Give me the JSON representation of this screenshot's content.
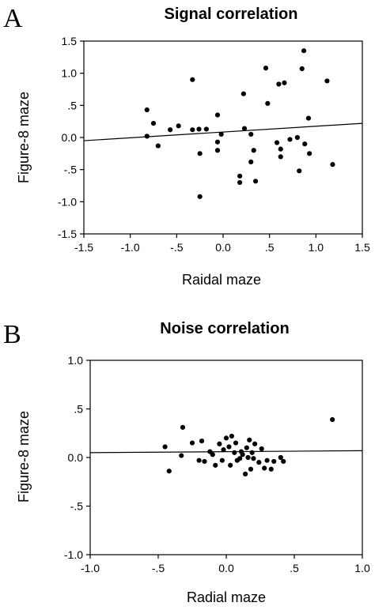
{
  "panels": [
    {
      "letter": "A"
    },
    {
      "letter": "B"
    }
  ],
  "chart_data": [
    {
      "type": "scatter",
      "title": "Signal correlation",
      "xlabel": "Raidal maze",
      "ylabel": "Figure-8 maze",
      "xlim": [
        -1.5,
        1.5
      ],
      "ylim": [
        -1.5,
        1.5
      ],
      "xticks": [
        -1.5,
        -1.0,
        -0.5,
        0.0,
        0.5,
        1.0,
        1.5
      ],
      "xtick_labels": [
        "-1.5",
        "-1.0",
        "-.5",
        "0.0",
        ".5",
        "1.0",
        "1.5"
      ],
      "yticks": [
        1.5,
        1.0,
        0.5,
        0.0,
        -0.5,
        -1.0,
        -1.5
      ],
      "ytick_labels": [
        "1.5",
        "1.0",
        ".5",
        "0.0",
        "-.5",
        "-1.0",
        "-1.5"
      ],
      "grid": false,
      "points": [
        {
          "x": -0.82,
          "y": 0.43
        },
        {
          "x": -0.82,
          "y": 0.02
        },
        {
          "x": -0.75,
          "y": 0.22
        },
        {
          "x": -0.7,
          "y": -0.13
        },
        {
          "x": -0.57,
          "y": 0.12
        },
        {
          "x": -0.48,
          "y": 0.18
        },
        {
          "x": -0.33,
          "y": 0.12
        },
        {
          "x": -0.33,
          "y": 0.9
        },
        {
          "x": -0.26,
          "y": 0.13
        },
        {
          "x": -0.25,
          "y": -0.25
        },
        {
          "x": -0.25,
          "y": -0.92
        },
        {
          "x": -0.18,
          "y": 0.13
        },
        {
          "x": -0.06,
          "y": 0.35
        },
        {
          "x": -0.06,
          "y": -0.07
        },
        {
          "x": -0.06,
          "y": -0.2
        },
        {
          "x": -0.02,
          "y": 0.05
        },
        {
          "x": 0.18,
          "y": -0.6
        },
        {
          "x": 0.18,
          "y": -0.7
        },
        {
          "x": 0.22,
          "y": 0.68
        },
        {
          "x": 0.23,
          "y": 0.14
        },
        {
          "x": 0.3,
          "y": 0.05
        },
        {
          "x": 0.3,
          "y": -0.38
        },
        {
          "x": 0.33,
          "y": -0.2
        },
        {
          "x": 0.35,
          "y": -0.68
        },
        {
          "x": 0.46,
          "y": 1.08
        },
        {
          "x": 0.48,
          "y": 0.53
        },
        {
          "x": 0.58,
          "y": -0.08
        },
        {
          "x": 0.6,
          "y": 0.83
        },
        {
          "x": 0.62,
          "y": -0.18
        },
        {
          "x": 0.62,
          "y": -0.3
        },
        {
          "x": 0.66,
          "y": 0.85
        },
        {
          "x": 0.72,
          "y": -0.03
        },
        {
          "x": 0.8,
          "y": 0.0
        },
        {
          "x": 0.82,
          "y": -0.52
        },
        {
          "x": 0.85,
          "y": 1.07
        },
        {
          "x": 0.87,
          "y": 1.35
        },
        {
          "x": 0.88,
          "y": -0.1
        },
        {
          "x": 0.92,
          "y": 0.3
        },
        {
          "x": 0.93,
          "y": -0.25
        },
        {
          "x": 1.12,
          "y": 0.88
        },
        {
          "x": 1.18,
          "y": -0.42
        }
      ],
      "fit_line": {
        "x": [
          -1.5,
          1.5
        ],
        "y": [
          -0.05,
          0.22
        ]
      }
    },
    {
      "type": "scatter",
      "title": "Noise correlation",
      "xlabel": "Radial maze",
      "ylabel": "Figure-8 maze",
      "xlim": [
        -1.0,
        1.0
      ],
      "ylim": [
        -1.0,
        1.0
      ],
      "xticks": [
        -1.0,
        -0.5,
        0.0,
        0.5,
        1.0
      ],
      "xtick_labels": [
        "-1.0",
        "-.5",
        "0.0",
        ".5",
        "1.0"
      ],
      "yticks": [
        1.0,
        0.5,
        0.0,
        -0.5,
        -1.0
      ],
      "ytick_labels": [
        "1.0",
        ".5",
        "0.0",
        "-.5",
        "-1.0"
      ],
      "grid": false,
      "points": [
        {
          "x": -0.45,
          "y": 0.11
        },
        {
          "x": -0.42,
          "y": -0.14
        },
        {
          "x": -0.33,
          "y": 0.02
        },
        {
          "x": -0.32,
          "y": 0.31
        },
        {
          "x": -0.25,
          "y": 0.15
        },
        {
          "x": -0.2,
          "y": -0.03
        },
        {
          "x": -0.18,
          "y": 0.17
        },
        {
          "x": -0.16,
          "y": -0.04
        },
        {
          "x": -0.12,
          "y": 0.06
        },
        {
          "x": -0.1,
          "y": 0.03
        },
        {
          "x": -0.08,
          "y": -0.08
        },
        {
          "x": -0.05,
          "y": 0.14
        },
        {
          "x": -0.03,
          "y": -0.03
        },
        {
          "x": -0.02,
          "y": 0.08
        },
        {
          "x": 0.0,
          "y": 0.2
        },
        {
          "x": 0.02,
          "y": 0.11
        },
        {
          "x": 0.03,
          "y": -0.08
        },
        {
          "x": 0.04,
          "y": 0.22
        },
        {
          "x": 0.06,
          "y": 0.05
        },
        {
          "x": 0.07,
          "y": 0.15
        },
        {
          "x": 0.08,
          "y": -0.03
        },
        {
          "x": 0.1,
          "y": -0.01
        },
        {
          "x": 0.11,
          "y": 0.06
        },
        {
          "x": 0.12,
          "y": 0.03
        },
        {
          "x": 0.14,
          "y": -0.17
        },
        {
          "x": 0.15,
          "y": 0.1
        },
        {
          "x": 0.16,
          "y": 0.0
        },
        {
          "x": 0.17,
          "y": 0.18
        },
        {
          "x": 0.18,
          "y": -0.12
        },
        {
          "x": 0.19,
          "y": 0.05
        },
        {
          "x": 0.2,
          "y": -0.01
        },
        {
          "x": 0.21,
          "y": 0.14
        },
        {
          "x": 0.24,
          "y": -0.05
        },
        {
          "x": 0.26,
          "y": 0.09
        },
        {
          "x": 0.28,
          "y": -0.11
        },
        {
          "x": 0.3,
          "y": -0.03
        },
        {
          "x": 0.33,
          "y": -0.12
        },
        {
          "x": 0.35,
          "y": -0.04
        },
        {
          "x": 0.4,
          "y": 0.0
        },
        {
          "x": 0.42,
          "y": -0.04
        },
        {
          "x": 0.78,
          "y": 0.39
        }
      ],
      "fit_line": {
        "x": [
          -1.0,
          1.0
        ],
        "y": [
          0.05,
          0.07
        ]
      }
    }
  ]
}
